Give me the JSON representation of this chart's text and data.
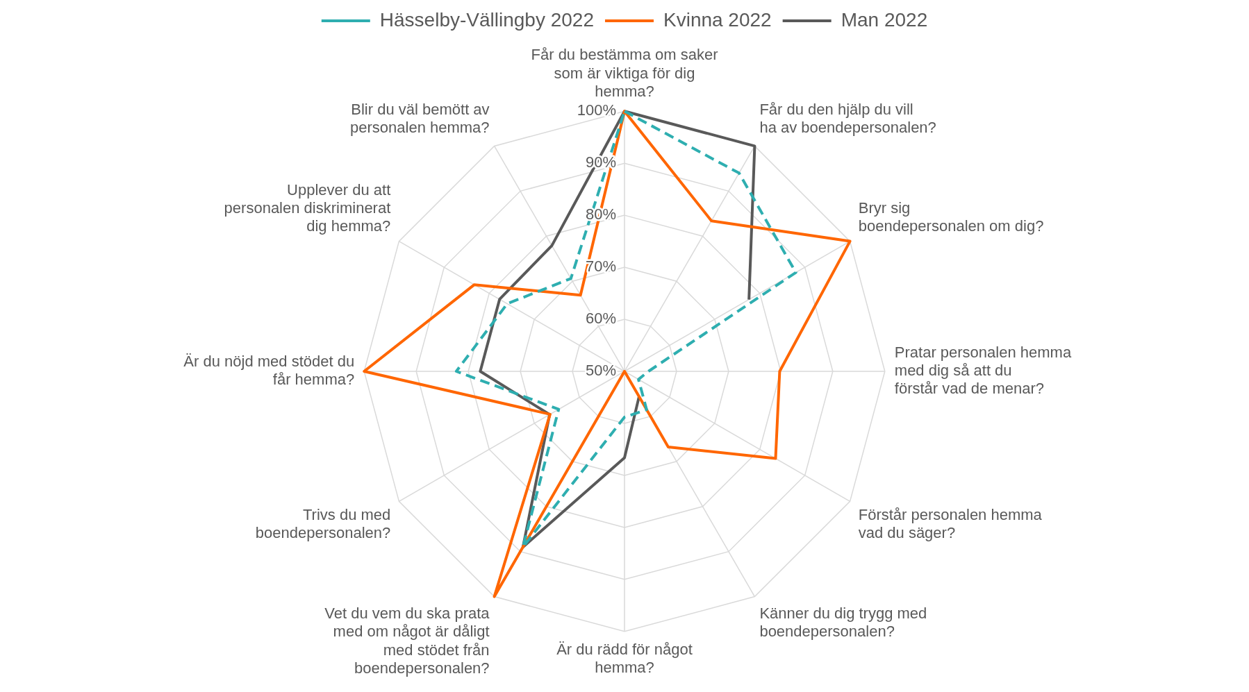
{
  "chart_data": {
    "type": "radar",
    "categories": [
      "Får du bestämma om saker som är viktiga för dig hemma?",
      "Får du den hjälp du vill ha av boendepersonalen?",
      "Bryr sig boendepersonalen om dig?",
      "Pratar personalen hemma med dig så att du förstår vad de menar?",
      "Förstår personalen hemma vad du säger?",
      "Känner du dig trygg med boendepersonalen?",
      "Är du rädd för något hemma?",
      "Vet du vem du ska prata med om något är dåligt med stödet från boendepersonalen?",
      "Trivs du med boendepersonalen?",
      "Är du nöjd med stödet du får hemma?",
      "Upplever du att personalen diskriminerat dig hemma?",
      "Blir du väl bemött av personalen hemma?"
    ],
    "series": [
      {
        "name": "Hässelby-Vällingby 2022",
        "color": "#2eaeb0",
        "line_style": "dashed",
        "values": [
          100,
          94,
          88,
          54.6,
          53.1,
          58.5,
          58.8,
          89,
          64.6,
          82.3,
          76,
          70.6
        ]
      },
      {
        "name": "Kvinna 2022",
        "color": "#ff6600",
        "line_style": "solid",
        "values": [
          100,
          83.4,
          100,
          79.8,
          83.5,
          66.8,
          50,
          100,
          66.5,
          100,
          83.3,
          66.9
        ]
      },
      {
        "name": "Man 2022",
        "color": "#595959",
        "line_style": "solid",
        "values": [
          100,
          100,
          77.6,
          null,
          null,
          55.6,
          66.6,
          89,
          66.6,
          77.7,
          77.7,
          77.9
        ]
      }
    ],
    "ylim": [
      50,
      100
    ],
    "yticks": [
      {
        "value": 50,
        "label": "50%"
      },
      {
        "value": 60,
        "label": "60%"
      },
      {
        "value": 70,
        "label": "70%"
      },
      {
        "value": 80,
        "label": "80%"
      },
      {
        "value": 90,
        "label": "90%"
      },
      {
        "value": 100,
        "label": "100%"
      }
    ],
    "grid": true,
    "legend": "top",
    "marker": "none"
  }
}
